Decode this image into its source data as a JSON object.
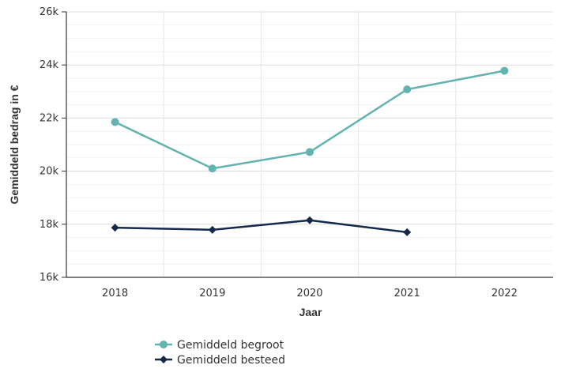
{
  "chart_data": {
    "type": "line",
    "categories": [
      "2018",
      "2019",
      "2020",
      "2021",
      "2022"
    ],
    "ylim": [
      16000,
      26000
    ],
    "yticks": [
      16000,
      18000,
      20000,
      22000,
      24000,
      26000
    ],
    "ytick_labels": [
      "16k",
      "18k",
      "20k",
      "22k",
      "24k",
      "26k"
    ],
    "xlabel": "Jaar",
    "ylabel": "Gemiddeld bedrag in €",
    "grid": true,
    "legend": "bottom-center",
    "series": [
      {
        "name": "Gemiddeld begroot",
        "color": "#63b3b1",
        "marker": "circle",
        "values": [
          21850,
          20100,
          20720,
          23080,
          23780
        ]
      },
      {
        "name": "Gemiddeld besteed",
        "color": "#15294a",
        "marker": "diamond",
        "values": [
          17870,
          17790,
          18150,
          17700,
          null
        ]
      }
    ]
  }
}
